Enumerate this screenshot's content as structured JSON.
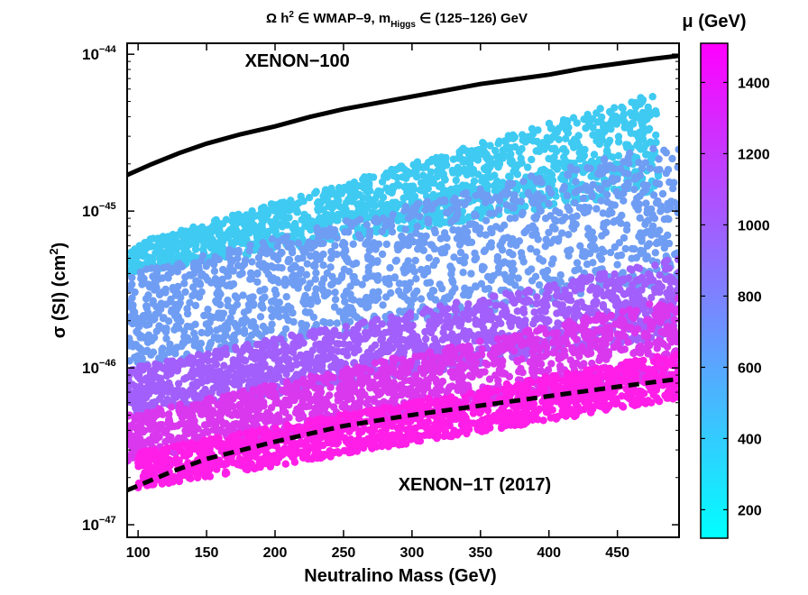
{
  "chart_data": {
    "type": "scatter",
    "title_prefix": "Ω h",
    "title_sup": "2",
    "title_in1": " ∈ ",
    "title_mid": "WMAP–9,  m",
    "title_sub": "Higgs",
    "title_in2": " ∈ ",
    "title_suffix": "(125–126) GeV",
    "xlabel": "Neutralino Mass  (GeV)",
    "ylabel_prefix": "σ (SI)  (cm",
    "ylabel_sup": "2",
    "ylabel_suffix": ")",
    "xlim": [
      92,
      495
    ],
    "ylim_log10": [
      -47.08,
      -43.93
    ],
    "yscale": "log",
    "x_ticks": [
      100,
      150,
      200,
      250,
      300,
      350,
      400,
      450
    ],
    "y_ticks": [
      {
        "exp": -44,
        "label_base": "10",
        "label_exp": "−44"
      },
      {
        "exp": -45,
        "label_base": "10",
        "label_exp": "−45"
      },
      {
        "exp": -46,
        "label_base": "10",
        "label_exp": "−46"
      },
      {
        "exp": -47,
        "label_base": "10",
        "label_exp": "−47"
      }
    ],
    "colorbar": {
      "label": "μ (GeV)",
      "range": [
        120,
        1510
      ],
      "ticks": [
        200,
        400,
        600,
        800,
        1000,
        1200,
        1400
      ],
      "colors": [
        "#00ffff",
        "#ff00ff"
      ]
    },
    "series": [
      {
        "name": "XENON-100",
        "style": "solid",
        "color": "#000000",
        "x": [
          92,
          110,
          130,
          150,
          175,
          200,
          225,
          250,
          275,
          300,
          325,
          350,
          375,
          400,
          425,
          450,
          475,
          495
        ],
        "log10_y": [
          -44.77,
          -44.7,
          -44.63,
          -44.57,
          -44.51,
          -44.46,
          -44.4,
          -44.35,
          -44.31,
          -44.27,
          -44.23,
          -44.19,
          -44.16,
          -44.13,
          -44.09,
          -44.06,
          -44.03,
          -44.01
        ]
      },
      {
        "name": "XENON-1T (2017)",
        "style": "dashed",
        "color": "#000000",
        "x": [
          92,
          125,
          150,
          200,
          250,
          300,
          350,
          400,
          450,
          495
        ],
        "log10_y": [
          -46.78,
          -46.66,
          -46.58,
          -46.47,
          -46.37,
          -46.3,
          -46.24,
          -46.18,
          -46.12,
          -46.07
        ]
      }
    ],
    "scatter_regions": [
      {
        "mu_gev": 380,
        "color": "#3fcaf2",
        "x_range": [
          92,
          480
        ],
        "log10_y_bottom_at": [
          -45.4,
          -44.85
        ],
        "log10_y_top_at": [
          -45.22,
          -44.2
        ]
      },
      {
        "mu_gev": 620,
        "color": "#6f9df3",
        "x_range": [
          92,
          495
        ],
        "log10_y_bottom_at": [
          -46.0,
          -45.45
        ],
        "log10_y_top_at": [
          -45.4,
          -44.55
        ]
      },
      {
        "mu_gev": 1000,
        "color": "#a25ffb",
        "x_range": [
          92,
          495
        ],
        "log10_y_bottom_at": [
          -46.3,
          -45.8
        ],
        "log10_y_top_at": [
          -46.0,
          -45.3
        ]
      },
      {
        "mu_gev": 1300,
        "color": "#d938ee",
        "x_range": [
          92,
          495
        ],
        "log10_y_bottom_at": [
          -46.6,
          -46.05
        ],
        "log10_y_top_at": [
          -46.3,
          -45.55
        ]
      },
      {
        "mu_gev": 1480,
        "color": "#ff1ee8",
        "x_range": [
          100,
          495
        ],
        "log10_y_bottom_at": [
          -46.78,
          -46.2
        ],
        "log10_y_top_at": [
          -46.55,
          -45.9
        ]
      }
    ],
    "annotations": [
      {
        "text": "XENON−100",
        "x": 178,
        "log10_y": -44.08
      },
      {
        "text": "XENON−1T (2017)",
        "x": 290,
        "log10_y": -46.78
      }
    ]
  }
}
